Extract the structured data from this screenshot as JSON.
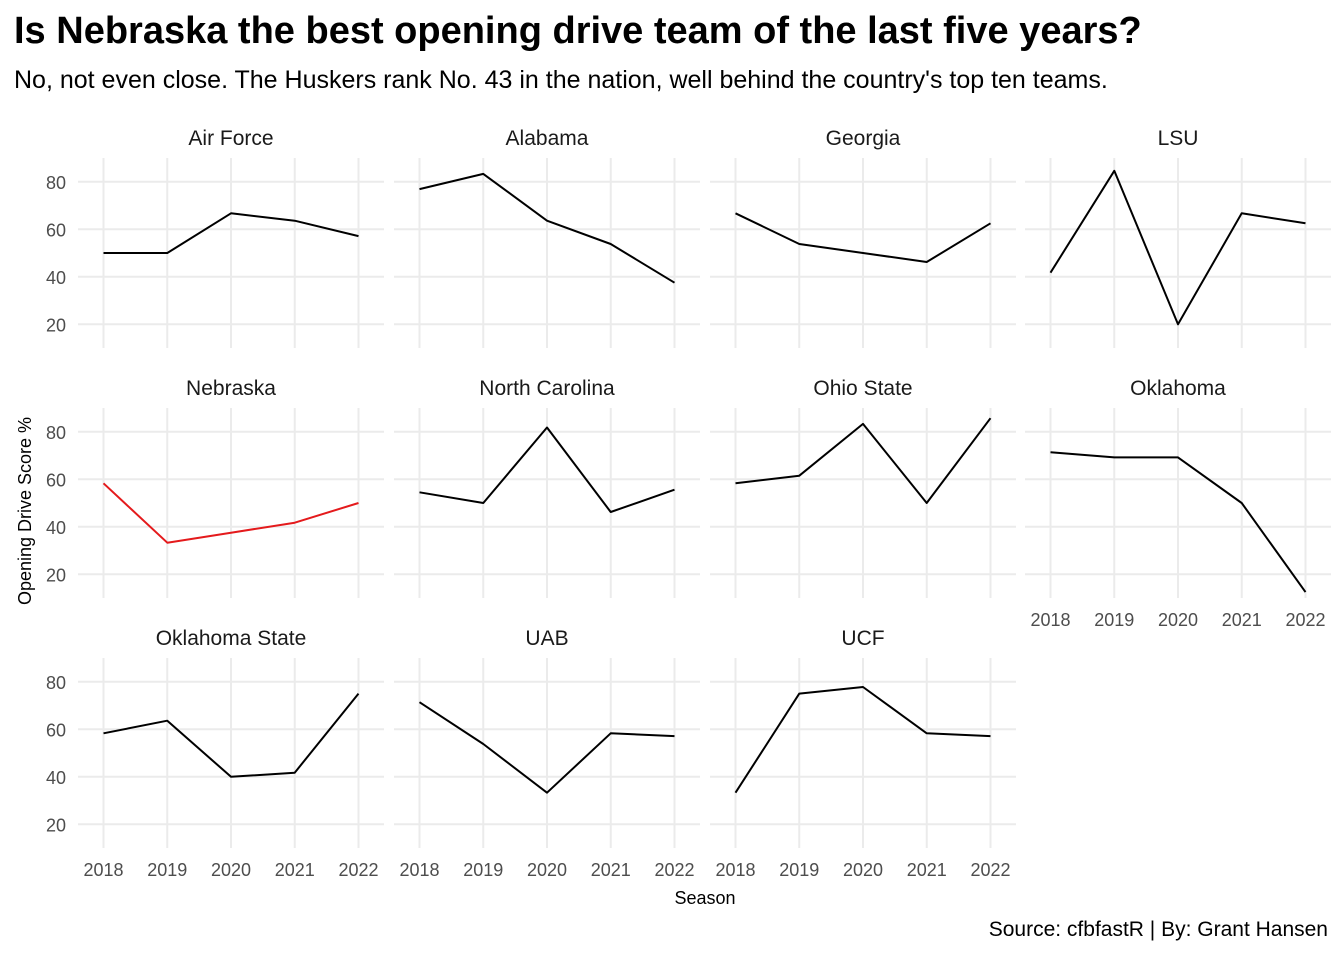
{
  "title": "Is Nebraska the best opening drive team of the last five years?",
  "subtitle": "No, not even close. The Huskers rank No. 43 in the nation, well behind the country's top ten teams.",
  "caption": "Source: cfbfastR | By: Grant Hansen",
  "colors": {
    "highlight": "#e41a1c",
    "default": "#000000",
    "grid": "#ebebeb"
  },
  "chart_data": {
    "type": "line",
    "xlabel": "Season",
    "ylabel": "Opening Drive Score %",
    "x": [
      2018,
      2019,
      2020,
      2021,
      2022
    ],
    "x_tick_labels": [
      "2018",
      "2019",
      "2020",
      "2021",
      "2022"
    ],
    "y_ticks": [
      20,
      40,
      60,
      80
    ],
    "y_tick_labels": [
      "20",
      "40",
      "60",
      "80"
    ],
    "ylim": [
      10,
      90
    ],
    "xlim": [
      2017.6,
      2022.4
    ],
    "grid": true,
    "facets": [
      {
        "name": "Air Force",
        "values": [
          50,
          50,
          66.7,
          63.6,
          57.1
        ]
      },
      {
        "name": "Alabama",
        "values": [
          76.9,
          83.3,
          63.6,
          53.8,
          37.5
        ]
      },
      {
        "name": "Georgia",
        "values": [
          66.7,
          53.8,
          50,
          46.2,
          62.5
        ]
      },
      {
        "name": "LSU",
        "values": [
          41.7,
          84.6,
          20,
          66.7,
          62.5
        ]
      },
      {
        "name": "Nebraska",
        "values": [
          58.3,
          33.3,
          37.5,
          41.7,
          50
        ],
        "highlight": true
      },
      {
        "name": "North Carolina",
        "values": [
          54.5,
          50,
          81.8,
          46.2,
          55.6
        ]
      },
      {
        "name": "Ohio State",
        "values": [
          58.3,
          61.5,
          83.3,
          50,
          85.7
        ]
      },
      {
        "name": "Oklahoma",
        "values": [
          71.4,
          69.2,
          69.2,
          50,
          12.5
        ]
      },
      {
        "name": "Oklahoma State",
        "values": [
          58.3,
          63.6,
          40,
          41.7,
          75
        ]
      },
      {
        "name": "UAB",
        "values": [
          71.4,
          53.8,
          33.3,
          58.3,
          57.1
        ]
      },
      {
        "name": "UCF",
        "values": [
          33.3,
          75,
          77.8,
          58.3,
          57.1
        ]
      }
    ]
  }
}
